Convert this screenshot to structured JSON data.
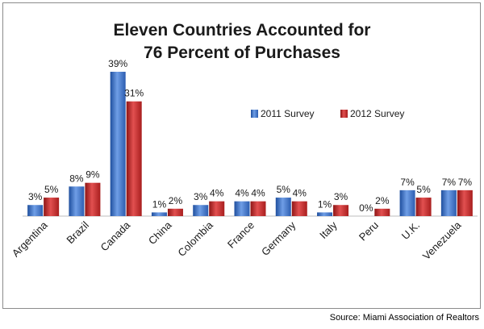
{
  "chart_data": {
    "type": "bar",
    "title_lines": [
      "Eleven Countries Accounted for",
      "76 Percent of Purchases"
    ],
    "categories": [
      "Argentina",
      "Brazil",
      "Canada",
      "China",
      "Colombia",
      "France",
      "Germany",
      "Italy",
      "Peru",
      "U.K.",
      "Venezuela"
    ],
    "series": [
      {
        "name": "2011 Survey",
        "color": "#3d73c9",
        "values": [
          3,
          8,
          39,
          1,
          3,
          4,
          5,
          1,
          0,
          7,
          7
        ]
      },
      {
        "name": "2012 Survey",
        "color": "#c42a2a",
        "values": [
          5,
          9,
          31,
          2,
          4,
          4,
          4,
          3,
          2,
          5,
          7
        ]
      }
    ],
    "value_labels": [
      [
        "3%",
        "8%",
        "39%",
        "1%",
        "3%",
        "4%",
        "5%",
        "1%",
        "0%",
        "7%",
        "7%"
      ],
      [
        "5%",
        "9%",
        "31%",
        "2%",
        "4%",
        "4%",
        "4%",
        "3%",
        "2%",
        "5%",
        "7%"
      ]
    ],
    "ylim": [
      0,
      40
    ],
    "grid": false,
    "legend_position": "top-right"
  },
  "source": "Source: Miami Association of Realtors"
}
